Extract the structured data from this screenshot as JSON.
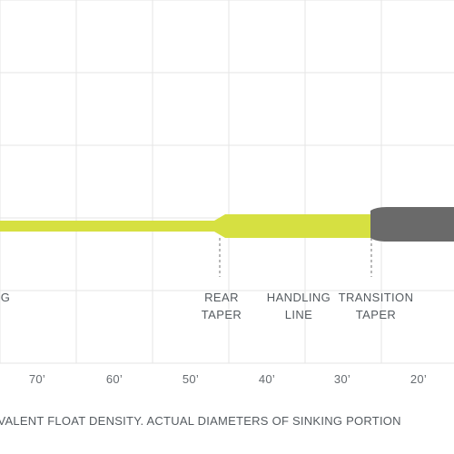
{
  "colors": {
    "background": "#ffffff",
    "grid": "#e6e6e6",
    "floating_line": "#d6e041",
    "sinking_tip": "#6a6a6a",
    "marker": "#8a8a8a",
    "text": "#555b60"
  },
  "segment_labels": [
    {
      "key": "left_partial",
      "text": "G"
    },
    {
      "key": "rear_taper",
      "line1": "REAR",
      "line2": "TAPER"
    },
    {
      "key": "handling_line",
      "line1": "HANDLING",
      "line2": "LINE"
    },
    {
      "key": "transition_taper",
      "line1": "TRANSITION",
      "line2": "TAPER"
    }
  ],
  "distance_ticks": [
    "70’",
    "60’",
    "50’",
    "40’",
    "30’",
    "20’"
  ],
  "footnote": "UIVALENT FLOAT DENSITY.  ACTUAL DIAMETERS OF SINKING PORTION"
}
